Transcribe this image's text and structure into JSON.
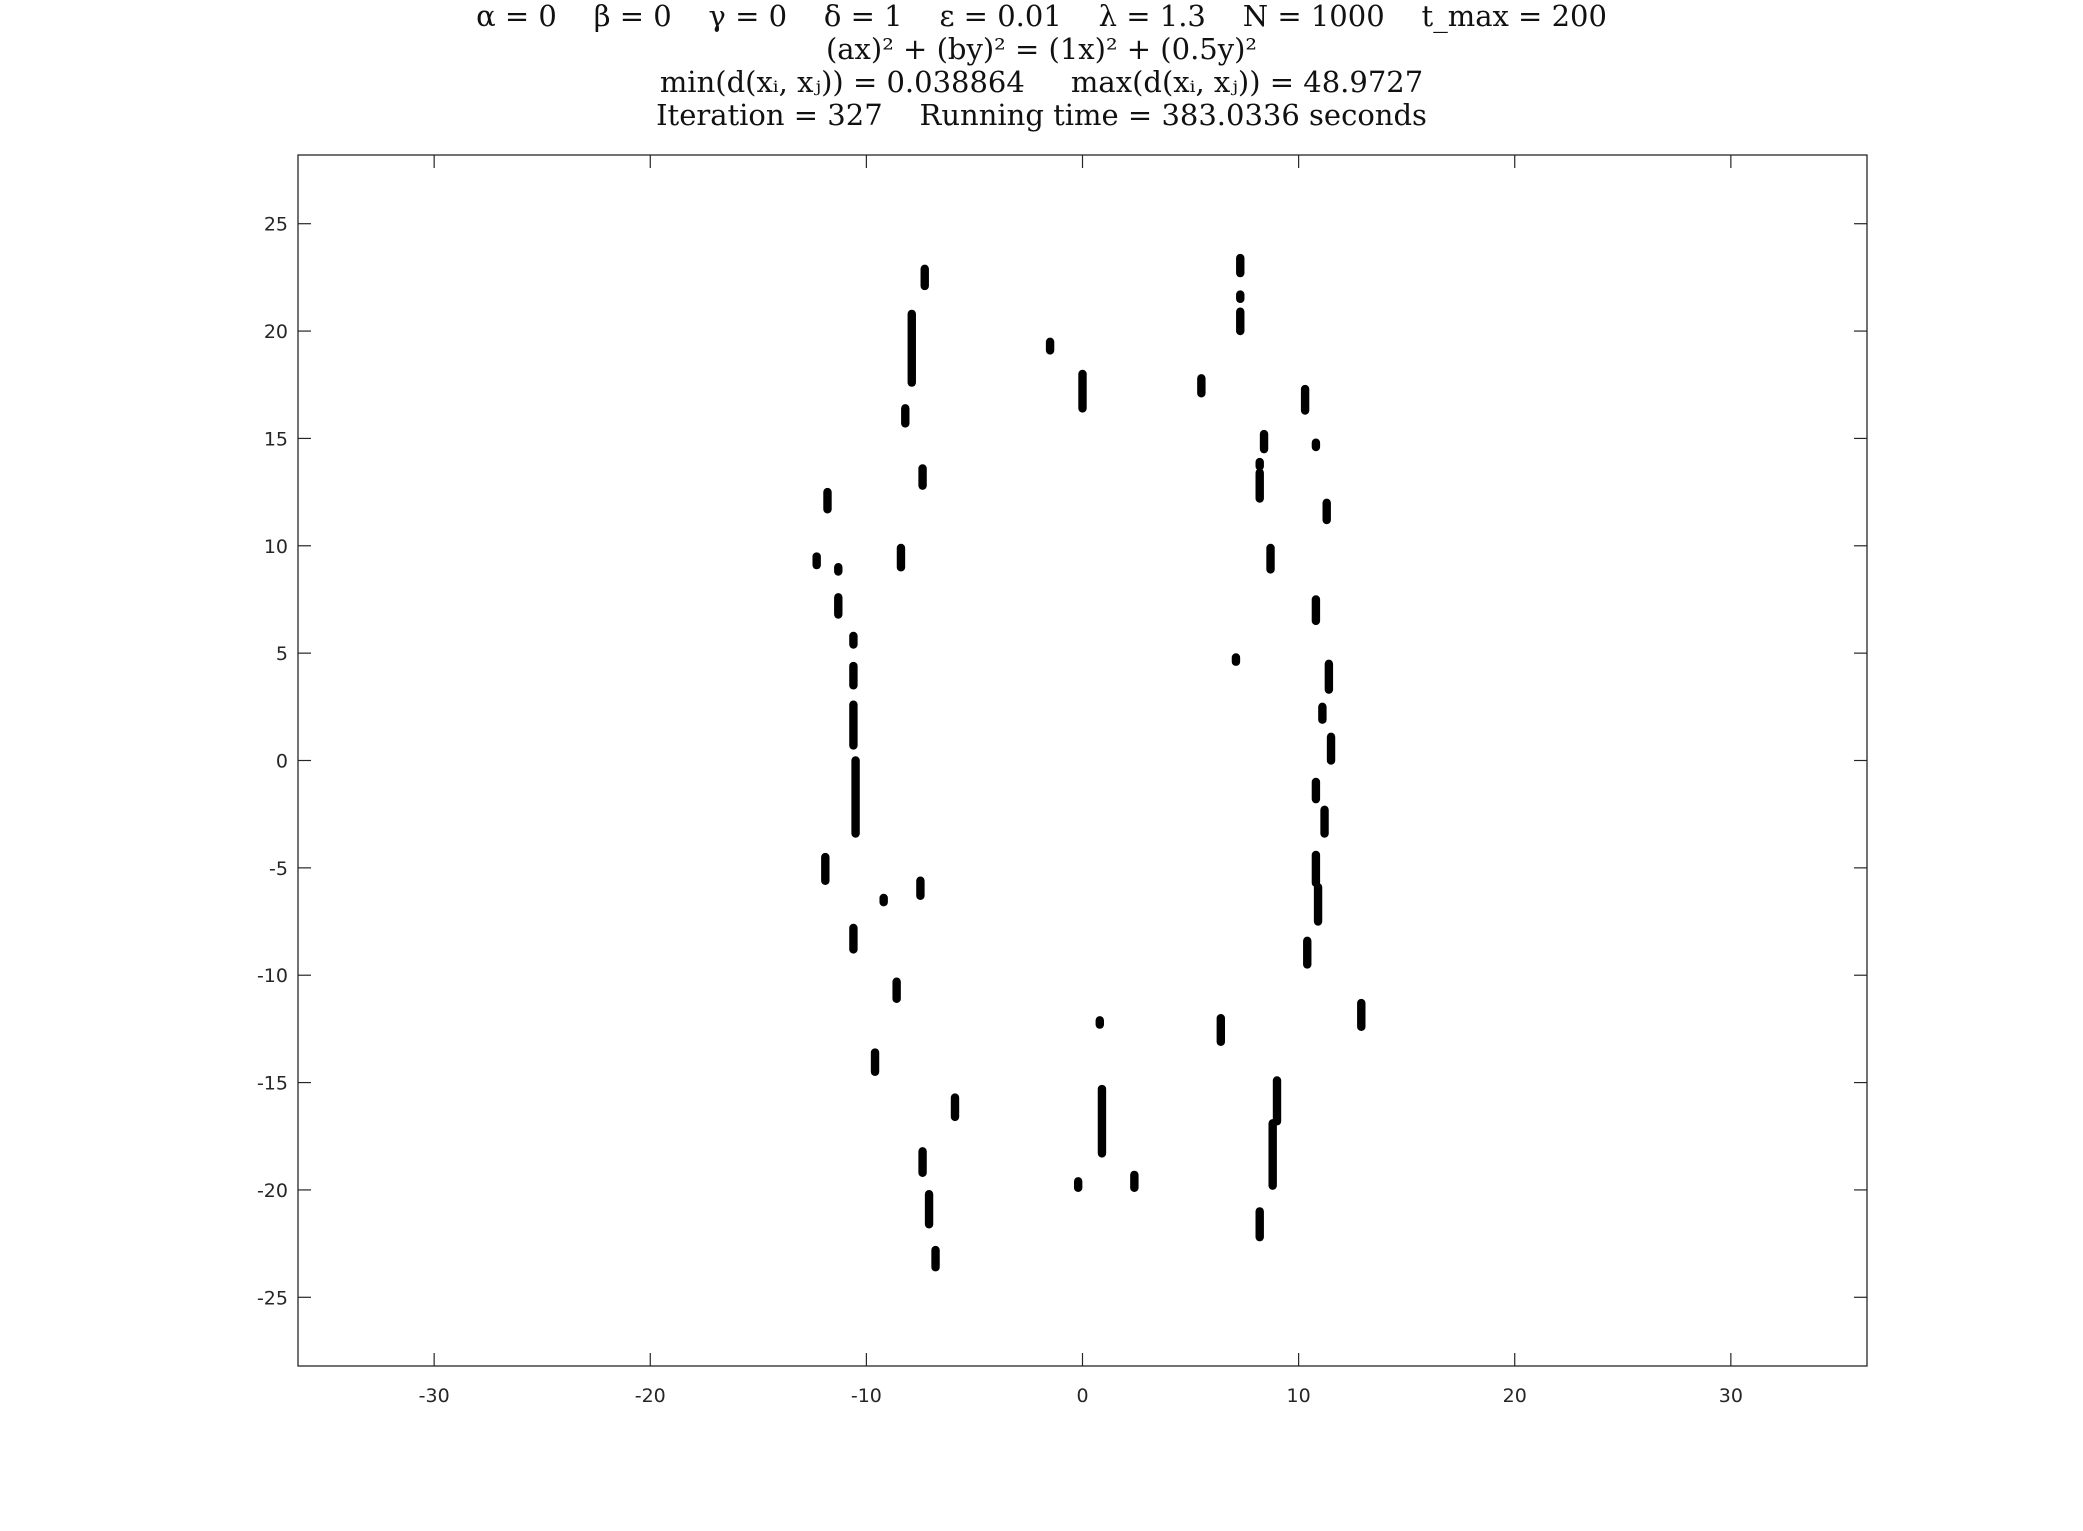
{
  "chart_data": {
    "type": "scatter",
    "title": [
      "α = 0    β = 0    γ = 0    δ = 1    ε = 0.01    λ = 1.3    N = 1000    t_max = 200",
      "(ax)² + (by)² = (1x)² + (0.5y)²",
      "min(d(xᵢ, xⱼ)) = 0.038864     max(d(xᵢ, xⱼ)) = 48.9727",
      "Iteration = 327    Running time = 383.0336 seconds"
    ],
    "xlabel": "",
    "ylabel": "",
    "xlim": [
      -36.3,
      36.3
    ],
    "ylim": [
      -28.2,
      28.2
    ],
    "xticks": [
      -30,
      -20,
      -10,
      0,
      10,
      20,
      30
    ],
    "yticks": [
      -25,
      -20,
      -15,
      -10,
      -5,
      0,
      5,
      10,
      15,
      20,
      25
    ],
    "tick_labels_x": [
      "-30",
      "-20",
      "-10",
      "0",
      "10",
      "20",
      "30"
    ],
    "tick_labels_y": [
      "-25",
      "-20",
      "-15",
      "-10",
      "-5",
      "0",
      "5",
      "10",
      "15",
      "20",
      "25"
    ],
    "grid": false,
    "marker_color": "#000000",
    "box_color": "#262626",
    "clusters": [
      {
        "x": -7.3,
        "y_min": 22.1,
        "y_max": 22.9
      },
      {
        "x": -7.9,
        "y_min": 17.6,
        "y_max": 20.8
      },
      {
        "x": -8.2,
        "y_min": 15.7,
        "y_max": 16.4
      },
      {
        "x": -7.4,
        "y_min": 12.8,
        "y_max": 13.6
      },
      {
        "x": -11.8,
        "y_min": 11.7,
        "y_max": 12.5
      },
      {
        "x": -12.3,
        "y_min": 9.1,
        "y_max": 9.5
      },
      {
        "x": -11.3,
        "y_min": 8.8,
        "y_max": 9.0
      },
      {
        "x": -8.4,
        "y_min": 9.0,
        "y_max": 9.9
      },
      {
        "x": -11.3,
        "y_min": 6.8,
        "y_max": 7.6
      },
      {
        "x": -10.6,
        "y_min": 5.4,
        "y_max": 5.8
      },
      {
        "x": -10.6,
        "y_min": 3.5,
        "y_max": 4.4
      },
      {
        "x": -10.6,
        "y_min": 0.7,
        "y_max": 2.6
      },
      {
        "x": -10.5,
        "y_min": -3.4,
        "y_max": 0.0
      },
      {
        "x": -11.9,
        "y_min": -5.6,
        "y_max": -4.5
      },
      {
        "x": -9.2,
        "y_min": -6.6,
        "y_max": -6.4
      },
      {
        "x": -7.5,
        "y_min": -6.3,
        "y_max": -5.6
      },
      {
        "x": -10.6,
        "y_min": -8.8,
        "y_max": -7.8
      },
      {
        "x": -8.6,
        "y_min": -11.1,
        "y_max": -10.3
      },
      {
        "x": -9.6,
        "y_min": -14.5,
        "y_max": -13.6
      },
      {
        "x": -5.9,
        "y_min": -16.6,
        "y_max": -15.7
      },
      {
        "x": -7.4,
        "y_min": -19.2,
        "y_max": -18.2
      },
      {
        "x": -7.1,
        "y_min": -21.6,
        "y_max": -20.2
      },
      {
        "x": -6.8,
        "y_min": -23.6,
        "y_max": -22.8
      },
      {
        "x": -1.5,
        "y_min": 19.1,
        "y_max": 19.5
      },
      {
        "x": 0.0,
        "y_min": 16.4,
        "y_max": 18.0
      },
      {
        "x": 5.5,
        "y_min": 17.1,
        "y_max": 17.8
      },
      {
        "x": 7.3,
        "y_min": 22.7,
        "y_max": 23.4
      },
      {
        "x": 7.3,
        "y_min": 21.5,
        "y_max": 21.7
      },
      {
        "x": 7.3,
        "y_min": 20.0,
        "y_max": 20.9
      },
      {
        "x": 10.3,
        "y_min": 16.3,
        "y_max": 17.3
      },
      {
        "x": 8.4,
        "y_min": 14.5,
        "y_max": 15.2
      },
      {
        "x": 10.8,
        "y_min": 14.6,
        "y_max": 14.8
      },
      {
        "x": 8.2,
        "y_min": 13.7,
        "y_max": 13.9
      },
      {
        "x": 8.2,
        "y_min": 12.2,
        "y_max": 13.4
      },
      {
        "x": 11.3,
        "y_min": 11.2,
        "y_max": 12.0
      },
      {
        "x": 8.7,
        "y_min": 8.9,
        "y_max": 9.9
      },
      {
        "x": 10.8,
        "y_min": 6.5,
        "y_max": 7.5
      },
      {
        "x": 7.1,
        "y_min": 4.6,
        "y_max": 4.8
      },
      {
        "x": 11.4,
        "y_min": 3.3,
        "y_max": 4.5
      },
      {
        "x": 11.1,
        "y_min": 1.9,
        "y_max": 2.5
      },
      {
        "x": 11.5,
        "y_min": 0.0,
        "y_max": 1.1
      },
      {
        "x": 10.8,
        "y_min": -1.8,
        "y_max": -1.0
      },
      {
        "x": 11.2,
        "y_min": -3.4,
        "y_max": -2.3
      },
      {
        "x": 10.8,
        "y_min": -5.7,
        "y_max": -4.4
      },
      {
        "x": 10.9,
        "y_min": -7.5,
        "y_max": -5.9
      },
      {
        "x": 10.4,
        "y_min": -9.5,
        "y_max": -8.4
      },
      {
        "x": 12.9,
        "y_min": -12.4,
        "y_max": -11.3
      },
      {
        "x": 6.4,
        "y_min": -13.1,
        "y_max": -12.0
      },
      {
        "x": 0.8,
        "y_min": -12.3,
        "y_max": -12.1
      },
      {
        "x": 0.9,
        "y_min": -18.3,
        "y_max": -15.3
      },
      {
        "x": -0.2,
        "y_min": -19.9,
        "y_max": -19.6
      },
      {
        "x": 2.4,
        "y_min": -19.9,
        "y_max": -19.3
      },
      {
        "x": 9.0,
        "y_min": -16.8,
        "y_max": -14.9
      },
      {
        "x": 8.8,
        "y_min": -19.8,
        "y_max": -16.9
      },
      {
        "x": 8.2,
        "y_min": -22.2,
        "y_max": -21.0
      }
    ]
  }
}
